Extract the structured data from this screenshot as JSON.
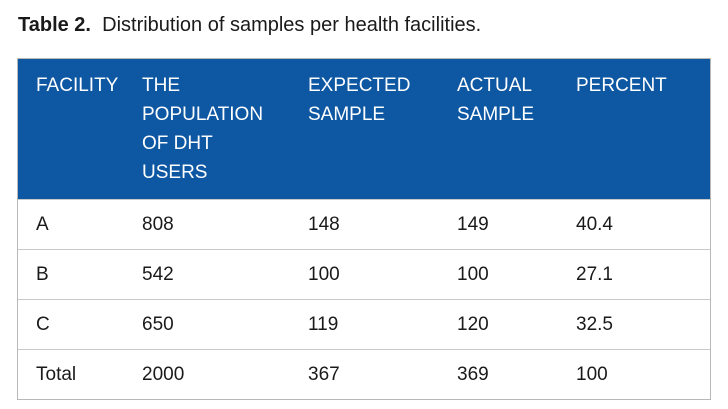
{
  "caption": {
    "label": "Table 2.",
    "text": "Distribution of samples per health facilities."
  },
  "table": {
    "headers": [
      [
        "FACILITY"
      ],
      [
        "THE",
        "POPULATION",
        "OF DHT",
        "USERS"
      ],
      [
        "EXPECTED",
        "SAMPLE"
      ],
      [
        "ACTUAL",
        "SAMPLE"
      ],
      [
        "PERCENT"
      ]
    ],
    "rows": [
      [
        "A",
        "808",
        "148",
        "149",
        "40.4"
      ],
      [
        "B",
        "542",
        "100",
        "100",
        "27.1"
      ],
      [
        "C",
        "650",
        "119",
        "120",
        "32.5"
      ],
      [
        "Total",
        "2000",
        "367",
        "369",
        "100"
      ]
    ]
  },
  "colors": {
    "header_background": "#0e57a3",
    "header_text": "#ffffff",
    "row_divider": "#c8c8c8"
  }
}
